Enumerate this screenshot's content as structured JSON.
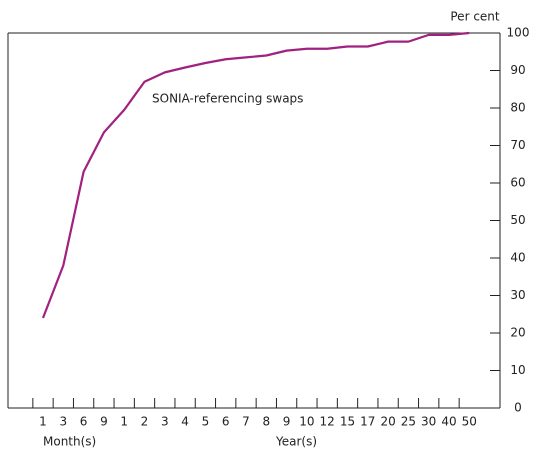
{
  "chart_data": {
    "type": "line",
    "y_unit_label": "Per cent",
    "annotation": "SONIA-referencing swaps",
    "x_group_labels": [
      "Month(s)",
      "Year(s)"
    ],
    "categories": [
      "1",
      "3",
      "6",
      "9",
      "1",
      "2",
      "3",
      "4",
      "5",
      "6",
      "7",
      "8",
      "9",
      "10",
      "12",
      "15",
      "17",
      "20",
      "25",
      "30",
      "40",
      "50"
    ],
    "series": [
      {
        "name": "SONIA-referencing swaps",
        "color": "#a0217f",
        "values": [
          24,
          38,
          63,
          73.5,
          79.5,
          87,
          89.5,
          90.8,
          92,
          93,
          93.5,
          94,
          95.3,
          95.8,
          95.8,
          96.4,
          96.4,
          97.7,
          97.7,
          99.5,
          99.5,
          100
        ]
      }
    ],
    "ylim": [
      0,
      100
    ],
    "yticks": [
      0,
      10,
      20,
      30,
      40,
      50,
      60,
      70,
      80,
      90,
      100
    ],
    "y_axis_side": "right"
  }
}
